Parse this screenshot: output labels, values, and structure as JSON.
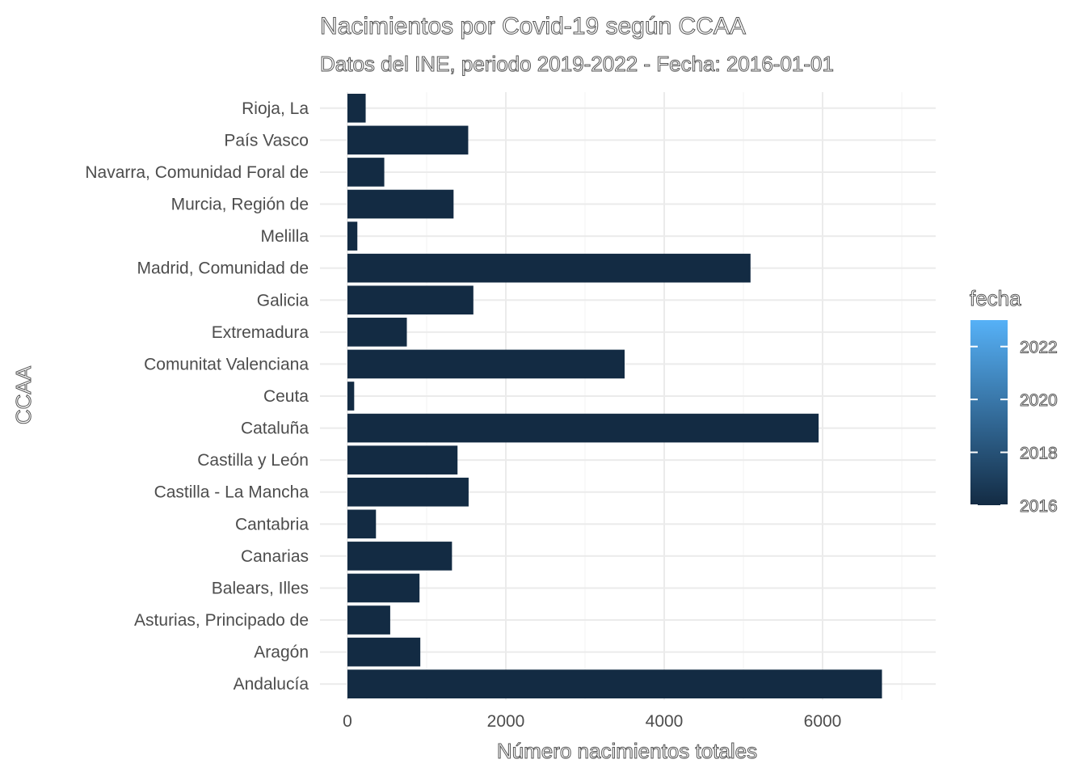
{
  "chart_data": {
    "type": "bar",
    "orientation": "horizontal",
    "title": "Nacimientos por Covid-19 según CCAA",
    "subtitle": "Datos del INE, periodo 2019-2022 - Fecha: 2016-01-01",
    "xlabel": "Número nacimientos totales",
    "ylabel": "CCAA",
    "xlim": [
      0,
      7400
    ],
    "x_ticks": [
      0,
      2000,
      4000,
      6000
    ],
    "grid": true,
    "categories": [
      "Andalucía",
      "Aragón",
      "Asturias, Principado de",
      "Balears, Illes",
      "Canarias",
      "Cantabria",
      "Castilla - La Mancha",
      "Castilla y León",
      "Cataluña",
      "Ceuta",
      "Comunitat Valenciana",
      "Extremadura",
      "Galicia",
      "Madrid, Comunidad de",
      "Melilla",
      "Murcia, Región de",
      "Navarra, Comunidad Foral de",
      "País Vasco",
      "Rioja, La"
    ],
    "values": [
      6750,
      920,
      540,
      910,
      1320,
      360,
      1530,
      1390,
      5950,
      85,
      3500,
      750,
      1590,
      5090,
      125,
      1340,
      465,
      1525,
      230
    ],
    "bar_color": "#132b43",
    "legend": {
      "title": "fecha",
      "placement": "right",
      "type": "colorbar",
      "labels": [
        "2022",
        "2020",
        "2018",
        "2016"
      ],
      "range": [
        2016,
        2023
      ],
      "color_low": "#132b43",
      "color_high": "#56b1f7"
    }
  }
}
